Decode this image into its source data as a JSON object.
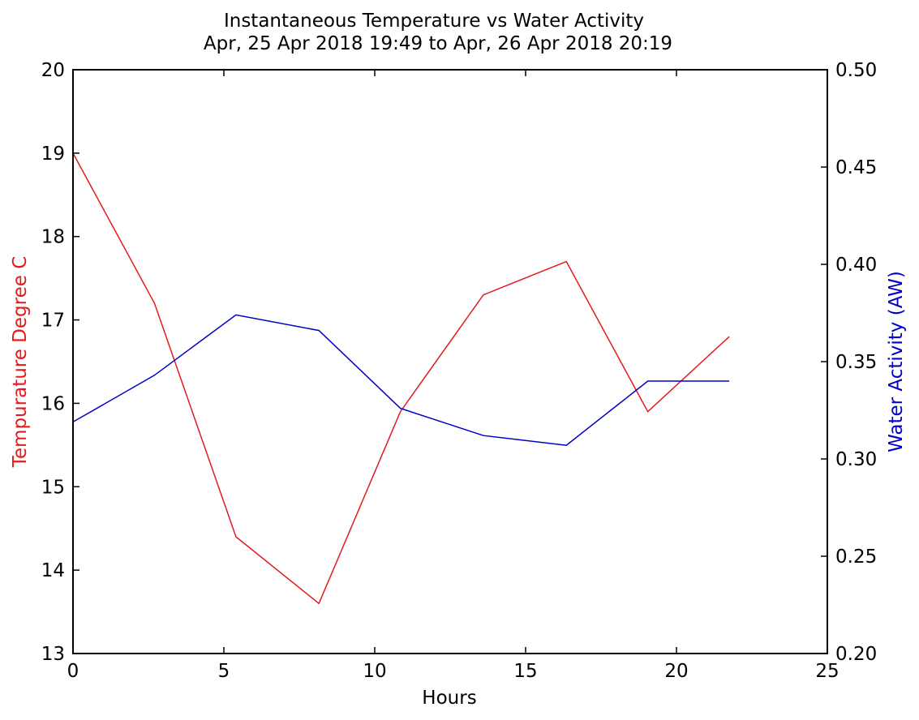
{
  "chart_data": {
    "type": "line",
    "title": "Instantaneous Temperature vs Water Activity",
    "subtitle": "Apr, 25 Apr 2018 19:49 to Apr, 26 Apr 2018 20:19",
    "xlabel": "Hours",
    "ylabel_left": "Tempurature Degree C",
    "ylabel_right": "Water Activity (AW)",
    "xlim": [
      0,
      25
    ],
    "ylim_left": [
      13,
      20
    ],
    "ylim_right": [
      0.2,
      0.5
    ],
    "x_ticks": [
      0,
      5,
      10,
      15,
      20,
      25
    ],
    "y_left_ticks": [
      13,
      14,
      15,
      16,
      17,
      18,
      19,
      20
    ],
    "y_right_ticks": [
      "0.20",
      "0.25",
      "0.30",
      "0.35",
      "0.40",
      "0.45",
      "0.50"
    ],
    "grid": false,
    "series": [
      {
        "name": "Tempurature Degree C",
        "axis": "left",
        "color": "#e41a1c",
        "x": [
          0,
          2.7,
          5.4,
          8.15,
          10.85,
          13.6,
          16.35,
          19.05,
          21.75
        ],
        "values": [
          19.0,
          17.2,
          14.4,
          13.6,
          15.9,
          17.3,
          17.7,
          15.9,
          16.8
        ]
      },
      {
        "name": "Water Activity (AW)",
        "axis": "right",
        "color": "#0000c8",
        "x": [
          0,
          2.7,
          5.4,
          8.15,
          10.85,
          13.6,
          16.35,
          19.05,
          21.75
        ],
        "values": [
          0.319,
          0.343,
          0.374,
          0.366,
          0.326,
          0.312,
          0.307,
          0.34,
          0.34
        ]
      }
    ]
  }
}
